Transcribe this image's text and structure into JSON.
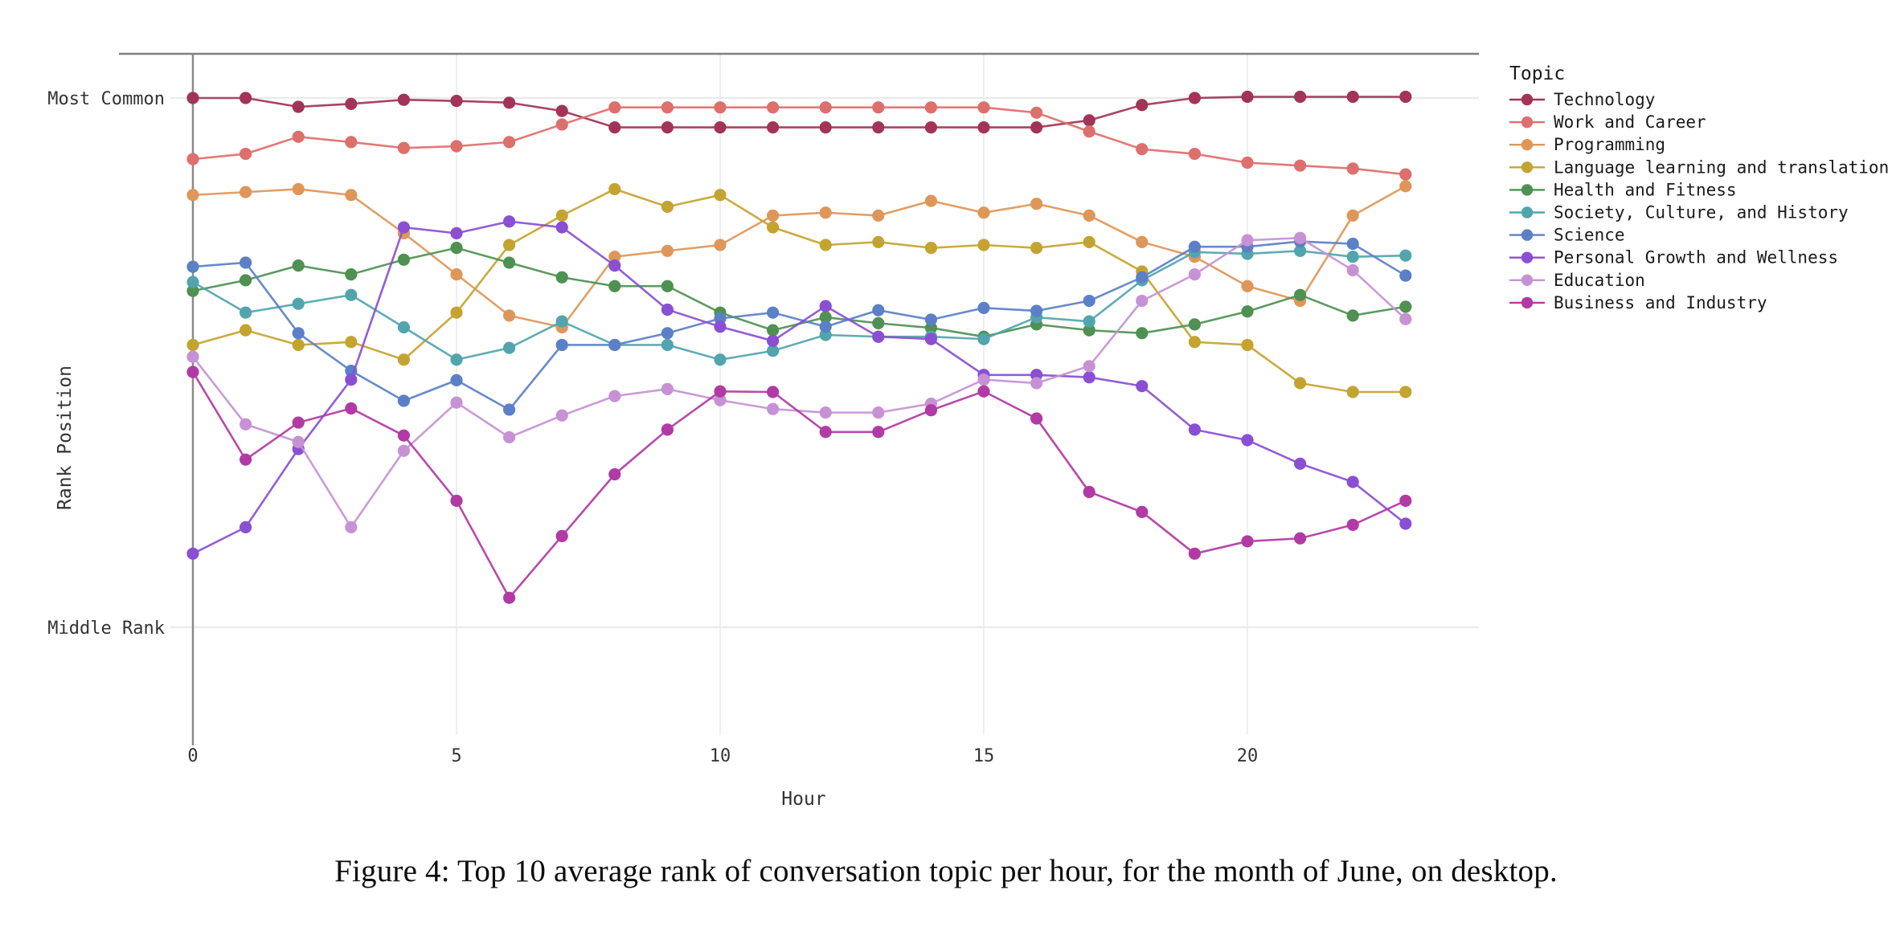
{
  "caption": "Figure 4: Top 10 average rank of conversation topic per hour, for the month of June, on desktop.",
  "chart_data": {
    "type": "line",
    "title": "",
    "xlabel": "Hour",
    "ylabel": "Rank Position",
    "legend_title": "Topic",
    "legend_position": "right",
    "grid": true,
    "x": [
      0,
      1,
      2,
      3,
      4,
      5,
      6,
      7,
      8,
      9,
      10,
      11,
      12,
      13,
      14,
      15,
      16,
      17,
      18,
      19,
      20,
      21,
      22,
      23
    ],
    "x_ticks": [
      0,
      5,
      10,
      15,
      20
    ],
    "y_axis_inverted": true,
    "y_ticks": [
      {
        "label": "Most Common",
        "rank": 1
      },
      {
        "label": "Middle Rank",
        "rank": 10
      }
    ],
    "ylim": [
      0.25,
      12.0
    ],
    "series": [
      {
        "name": "Technology",
        "color": "#a23457",
        "values": [
          1.0,
          1.0,
          1.15,
          1.1,
          1.03,
          1.05,
          1.08,
          1.22,
          1.5,
          1.5,
          1.5,
          1.5,
          1.5,
          1.5,
          1.5,
          1.5,
          1.5,
          1.38,
          1.12,
          1.0,
          0.98,
          0.98,
          0.98,
          0.98
        ]
      },
      {
        "name": "Work and Career",
        "color": "#dd6f6d",
        "values": [
          2.04,
          1.95,
          1.66,
          1.75,
          1.85,
          1.82,
          1.75,
          1.45,
          1.16,
          1.16,
          1.16,
          1.16,
          1.16,
          1.16,
          1.16,
          1.16,
          1.25,
          1.57,
          1.87,
          1.95,
          2.1,
          2.15,
          2.2,
          2.3
        ]
      },
      {
        "name": "Programming",
        "color": "#de9758",
        "values": [
          2.65,
          2.6,
          2.55,
          2.65,
          3.3,
          4.0,
          4.7,
          4.9,
          3.7,
          3.6,
          3.5,
          3.0,
          2.95,
          3.0,
          2.75,
          2.95,
          2.8,
          3.0,
          3.45,
          3.7,
          4.2,
          4.45,
          3.0,
          2.5
        ]
      },
      {
        "name": "Language learning and translation",
        "color": "#c4a431",
        "values": [
          5.2,
          4.95,
          5.2,
          5.15,
          5.45,
          4.65,
          3.5,
          3.0,
          2.55,
          2.85,
          2.65,
          3.2,
          3.5,
          3.45,
          3.55,
          3.5,
          3.55,
          3.45,
          3.95,
          5.15,
          5.2,
          5.85,
          6.0,
          6.0
        ]
      },
      {
        "name": "Health and Fitness",
        "color": "#4e9152",
        "values": [
          4.28,
          4.1,
          3.85,
          4.0,
          3.75,
          3.55,
          3.8,
          4.05,
          4.2,
          4.2,
          4.65,
          4.95,
          4.73,
          4.83,
          4.91,
          5.06,
          4.85,
          4.95,
          5.0,
          4.85,
          4.63,
          4.35,
          4.7,
          4.55
        ]
      },
      {
        "name": "Society, Culture, and History",
        "color": "#52a5ad",
        "values": [
          4.13,
          4.65,
          4.5,
          4.35,
          4.9,
          5.45,
          5.25,
          4.8,
          5.2,
          5.2,
          5.45,
          5.3,
          5.03,
          5.06,
          5.06,
          5.1,
          4.73,
          4.8,
          4.1,
          3.62,
          3.65,
          3.6,
          3.7,
          3.68
        ]
      },
      {
        "name": "Science",
        "color": "#5b80c7",
        "values": [
          3.87,
          3.8,
          5.0,
          5.64,
          6.15,
          5.8,
          6.3,
          5.2,
          5.2,
          5.0,
          4.75,
          4.65,
          4.89,
          4.61,
          4.77,
          4.57,
          4.62,
          4.45,
          4.05,
          3.53,
          3.53,
          3.44,
          3.48,
          4.02
        ]
      },
      {
        "name": "Personal Growth and Wellness",
        "color": "#8a4fd2",
        "values": [
          8.75,
          8.3,
          6.97,
          5.79,
          3.2,
          3.3,
          3.1,
          3.2,
          3.85,
          4.6,
          4.89,
          5.13,
          4.54,
          5.06,
          5.1,
          5.71,
          5.71,
          5.75,
          5.9,
          6.64,
          6.82,
          7.22,
          7.53,
          8.24
        ]
      },
      {
        "name": "Education",
        "color": "#c692d5",
        "values": [
          5.4,
          6.55,
          6.85,
          8.3,
          7.0,
          6.18,
          6.77,
          6.4,
          6.07,
          5.95,
          6.14,
          6.29,
          6.35,
          6.35,
          6.2,
          5.79,
          5.85,
          5.56,
          4.45,
          4.0,
          3.42,
          3.38,
          3.93,
          4.76
        ]
      },
      {
        "name": "Business and Industry",
        "color": "#b23aa4",
        "values": [
          5.66,
          7.15,
          6.52,
          6.28,
          6.74,
          7.85,
          9.5,
          8.45,
          7.4,
          6.64,
          5.99,
          6.0,
          6.68,
          6.68,
          6.31,
          5.99,
          6.45,
          7.7,
          8.04,
          8.75,
          8.54,
          8.49,
          8.26,
          7.85
        ]
      }
    ]
  }
}
